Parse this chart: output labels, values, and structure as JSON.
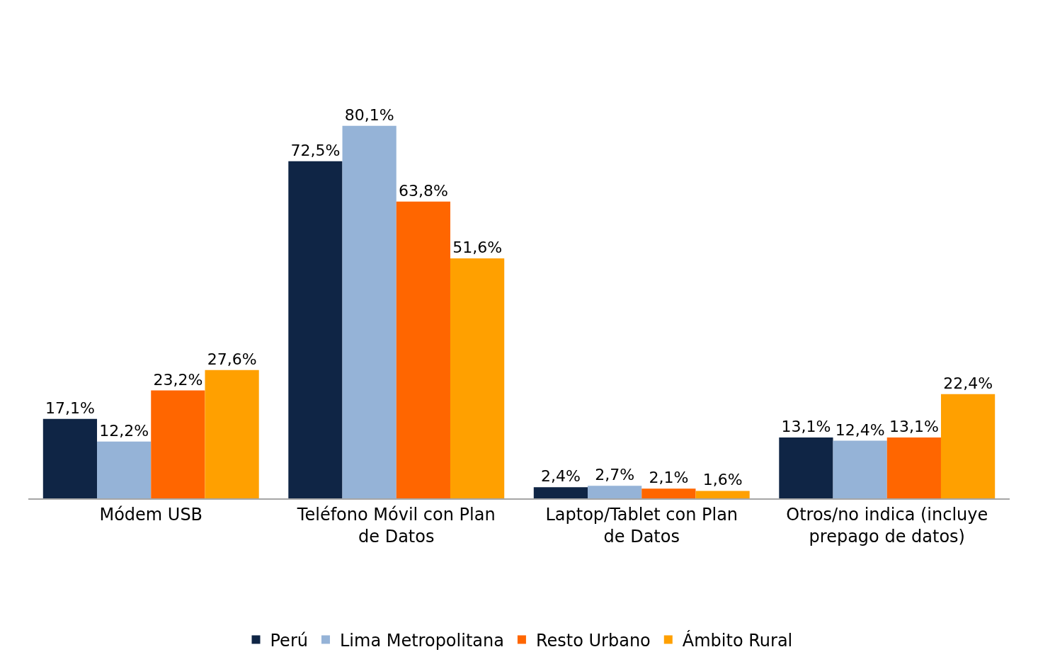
{
  "chart_data": {
    "type": "bar",
    "categories": [
      "Módem USB",
      "Teléfono Móvil con Plan de Datos",
      "Laptop/Tablet con Plan de Datos",
      "Otros/no indica (incluye prepago de datos)"
    ],
    "series": [
      {
        "name": "Perú",
        "color": "#0f2545",
        "values": [
          17.1,
          72.5,
          2.4,
          13.1
        ],
        "value_labels": [
          "17,1%",
          "72,5%",
          "2,4%",
          "13,1%"
        ]
      },
      {
        "name": "Lima Metropolitana",
        "color": "#95b3d7",
        "values": [
          12.2,
          80.1,
          2.7,
          12.4
        ],
        "value_labels": [
          "12,2%",
          "80,1%",
          "2,7%",
          "12,4%"
        ]
      },
      {
        "name": "Resto Urbano",
        "color": "#ff6600",
        "values": [
          23.2,
          63.8,
          2.1,
          13.1
        ],
        "value_labels": [
          "23,2%",
          "63,8%",
          "2,1%",
          "13,1%"
        ]
      },
      {
        "name": "Ámbito Rural",
        "color": "#ffa000",
        "values": [
          27.6,
          51.6,
          1.6,
          22.4
        ],
        "value_labels": [
          "27,6%",
          "51,6%",
          "1,6%",
          "22,4%"
        ]
      }
    ],
    "legend": "bottom"
  }
}
